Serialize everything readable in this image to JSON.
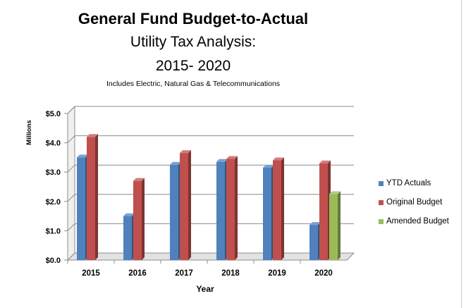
{
  "chart_data": {
    "type": "bar",
    "title": "General Fund Budget-to-Actual",
    "subtitle_line1": "Utility Tax Analysis:",
    "subtitle_line2": "2015- 2020",
    "note": "Includes Electric, Natural Gas & Telecommunications",
    "xlabel": "Year",
    "ylabel": "Millions",
    "ylim": [
      0,
      5
    ],
    "yticks": [
      "$0.0",
      "$1.0",
      "$2.0",
      "$3.0",
      "$4.0",
      "$5.0"
    ],
    "grid": true,
    "legend_position": "right",
    "categories": [
      "2015",
      "2016",
      "2017",
      "2018",
      "2019",
      "2020"
    ],
    "series": [
      {
        "name": "YTD Actuals",
        "color": "#4f81bd",
        "values": [
          3.5,
          1.5,
          3.25,
          3.35,
          3.15,
          1.2
        ]
      },
      {
        "name": "Original Budget",
        "color": "#c0504d",
        "values": [
          4.2,
          2.7,
          3.65,
          3.45,
          3.4,
          3.3
        ]
      },
      {
        "name": "Amended Budget",
        "color": "#9bbb59",
        "values": [
          null,
          null,
          null,
          null,
          null,
          2.25
        ]
      }
    ]
  }
}
